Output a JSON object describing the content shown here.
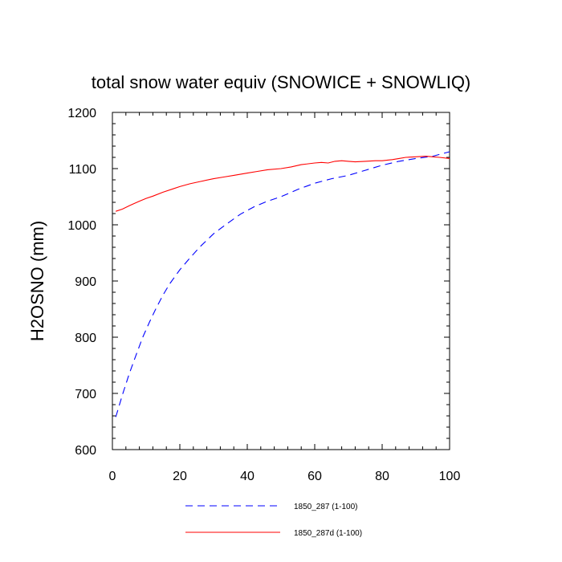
{
  "chart_data": {
    "type": "line",
    "title": "total snow water equiv (SNOWICE + SNOWLIQ)",
    "xlabel": "",
    "ylabel": "H2OSNO  (mm)",
    "xlim": [
      0,
      100
    ],
    "ylim": [
      600,
      1200
    ],
    "x_ticks": [
      0,
      20,
      40,
      60,
      80,
      100
    ],
    "y_ticks": [
      600,
      700,
      800,
      900,
      1000,
      1100,
      1200
    ],
    "grid": false,
    "legend_position": "bottom",
    "series": [
      {
        "name": "1850_287 (1-100)",
        "color": "#0000ff",
        "dash": "dashed",
        "x": [
          1,
          3,
          5,
          7,
          9,
          11,
          13,
          15,
          17,
          20,
          23,
          26,
          30,
          34,
          38,
          42,
          46,
          50,
          55,
          60,
          65,
          70,
          75,
          80,
          85,
          90,
          95,
          100
        ],
        "y": [
          658,
          698,
          735,
          768,
          800,
          827,
          852,
          875,
          895,
          920,
          941,
          961,
          984,
          1002,
          1019,
          1032,
          1042,
          1050,
          1063,
          1074,
          1082,
          1088,
          1097,
          1106,
          1113,
          1118,
          1122,
          1130
        ]
      },
      {
        "name": "1850_287d (1-100)",
        "color": "#ff0000",
        "dash": "solid",
        "x": [
          1,
          3,
          5,
          8,
          10,
          12,
          15,
          18,
          20,
          23,
          26,
          30,
          33,
          36,
          40,
          43,
          46,
          50,
          53,
          56,
          60,
          62,
          64,
          66,
          68,
          70,
          72,
          75,
          78,
          80,
          83,
          85,
          87,
          90,
          93,
          95,
          97,
          100
        ],
        "y": [
          1024,
          1028,
          1034,
          1042,
          1047,
          1051,
          1058,
          1064,
          1068,
          1073,
          1077,
          1082,
          1085,
          1088,
          1092,
          1095,
          1098,
          1100,
          1103,
          1107,
          1110,
          1111,
          1110,
          1113,
          1114,
          1113,
          1112,
          1113,
          1114,
          1114,
          1116,
          1118,
          1120,
          1121,
          1122,
          1121,
          1120,
          1118
        ]
      }
    ]
  }
}
